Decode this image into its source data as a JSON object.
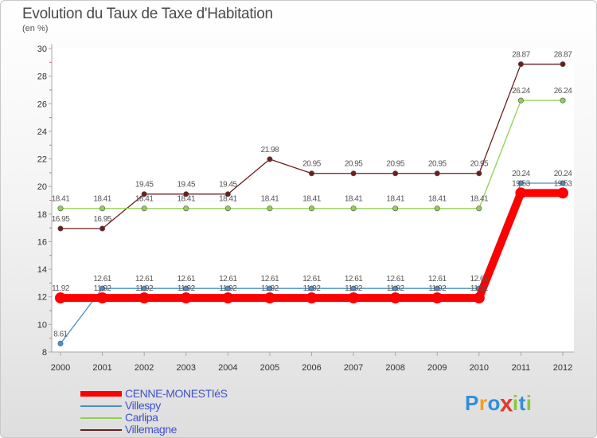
{
  "title": "Evolution du Taux de Taxe d'Habitation",
  "unit": "(en %)",
  "logo": {
    "letters": [
      "P",
      "r",
      "o",
      "x",
      "i",
      "t",
      "i"
    ],
    "colors": [
      "#2f8fd8",
      "#f0a020",
      "#2f8fd8",
      "#e33a2a",
      "#8cc63f",
      "#2f8fd8",
      "#8cc63f"
    ]
  },
  "chart_data": {
    "type": "line",
    "title": "Evolution du Taux de Taxe d'Habitation",
    "ylabel": "(en %)",
    "xlabel": "",
    "ylim": [
      8,
      30
    ],
    "yticks": [
      8,
      10,
      12,
      14,
      16,
      18,
      20,
      22,
      24,
      26,
      28,
      30
    ],
    "x": [
      "2000",
      "2001",
      "2002",
      "2003",
      "2004",
      "2005",
      "2006",
      "2007",
      "2008",
      "2009",
      "2010",
      "2011",
      "2012"
    ],
    "series": [
      {
        "name": "CENNE-MONESTIéS",
        "color": "#ff0000",
        "values": [
          11.92,
          11.92,
          11.92,
          11.92,
          11.92,
          11.92,
          11.92,
          11.92,
          11.92,
          11.92,
          11.92,
          19.53,
          19.53
        ],
        "labels": [
          "11.92",
          "11.92",
          "11.92",
          "11.92",
          "11.92",
          "11.92",
          "11.92",
          "11.92",
          "11.92",
          "11.92",
          "11.92",
          "19.53",
          "19.53"
        ]
      },
      {
        "name": "Villespy",
        "color": "#4a90c8",
        "values": [
          8.61,
          12.61,
          12.61,
          12.61,
          12.61,
          12.61,
          12.61,
          12.61,
          12.61,
          12.61,
          12.61,
          20.24,
          20.24
        ],
        "labels": [
          "8.61",
          "12.61",
          "12.61",
          "12.61",
          "12.61",
          "12.61",
          "12.61",
          "12.61",
          "12.61",
          "12.61",
          "12.61",
          "20.24",
          "20.24"
        ]
      },
      {
        "name": "Carlipa",
        "color": "#8fd14f",
        "values": [
          18.41,
          18.41,
          18.41,
          18.41,
          18.41,
          18.41,
          18.41,
          18.41,
          18.41,
          18.41,
          18.41,
          26.24,
          26.24
        ],
        "labels": [
          "18.41",
          "18.41",
          "18.41",
          "18.41",
          "18.41",
          "18.41",
          "18.41",
          "18.41",
          "18.41",
          "18.41",
          "18.41",
          "26.24",
          "26.24"
        ]
      },
      {
        "name": "Villemagne",
        "color": "#6b1f1f",
        "values": [
          16.95,
          16.95,
          19.45,
          19.45,
          19.45,
          21.98,
          20.95,
          20.95,
          20.95,
          20.95,
          20.95,
          28.87,
          28.87
        ],
        "labels": [
          "16.95",
          "16.95",
          "19.45",
          "19.45",
          "19.45",
          "21.98",
          "20.95",
          "20.95",
          "20.95",
          "20.95",
          "20.95",
          "28.87",
          "28.87"
        ]
      }
    ]
  }
}
